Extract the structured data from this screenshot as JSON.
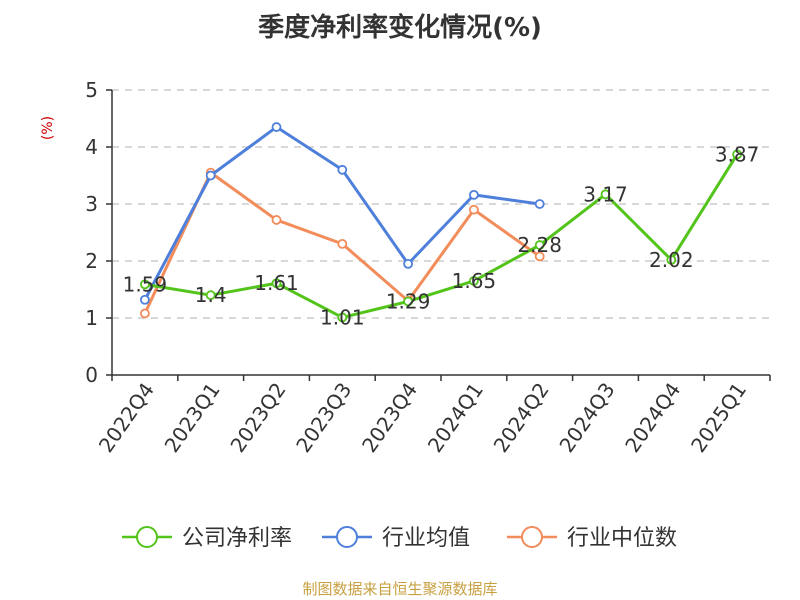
{
  "chart_data": {
    "type": "line",
    "title": "季度净利率变化情况(%)",
    "ylabel": "(%)",
    "ylim": [
      0,
      5
    ],
    "yticks": [
      0,
      1,
      2,
      3,
      4,
      5
    ],
    "grid": true,
    "legend_position": "bottom",
    "categories": [
      "2022Q4",
      "2023Q1",
      "2023Q2",
      "2023Q3",
      "2023Q4",
      "2024Q1",
      "2024Q2",
      "2024Q3",
      "2024Q4",
      "2025Q1"
    ],
    "series": [
      {
        "name": "公司净利率",
        "color": "#52c41a",
        "values": [
          1.59,
          1.4,
          1.61,
          1.01,
          1.29,
          1.65,
          2.28,
          3.17,
          2.02,
          3.87
        ],
        "show_labels": true
      },
      {
        "name": "行业均值",
        "color": "#4e7fdb",
        "values": [
          1.32,
          3.5,
          4.35,
          3.6,
          1.95,
          3.16,
          3.0,
          null,
          null,
          null
        ],
        "show_labels": false
      },
      {
        "name": "行业中位数",
        "color": "#f28c5a",
        "values": [
          1.08,
          3.55,
          2.72,
          2.3,
          1.3,
          2.9,
          2.08,
          null,
          null,
          null
        ],
        "show_labels": false
      }
    ],
    "source": "制图数据来自恒生聚源数据库"
  }
}
